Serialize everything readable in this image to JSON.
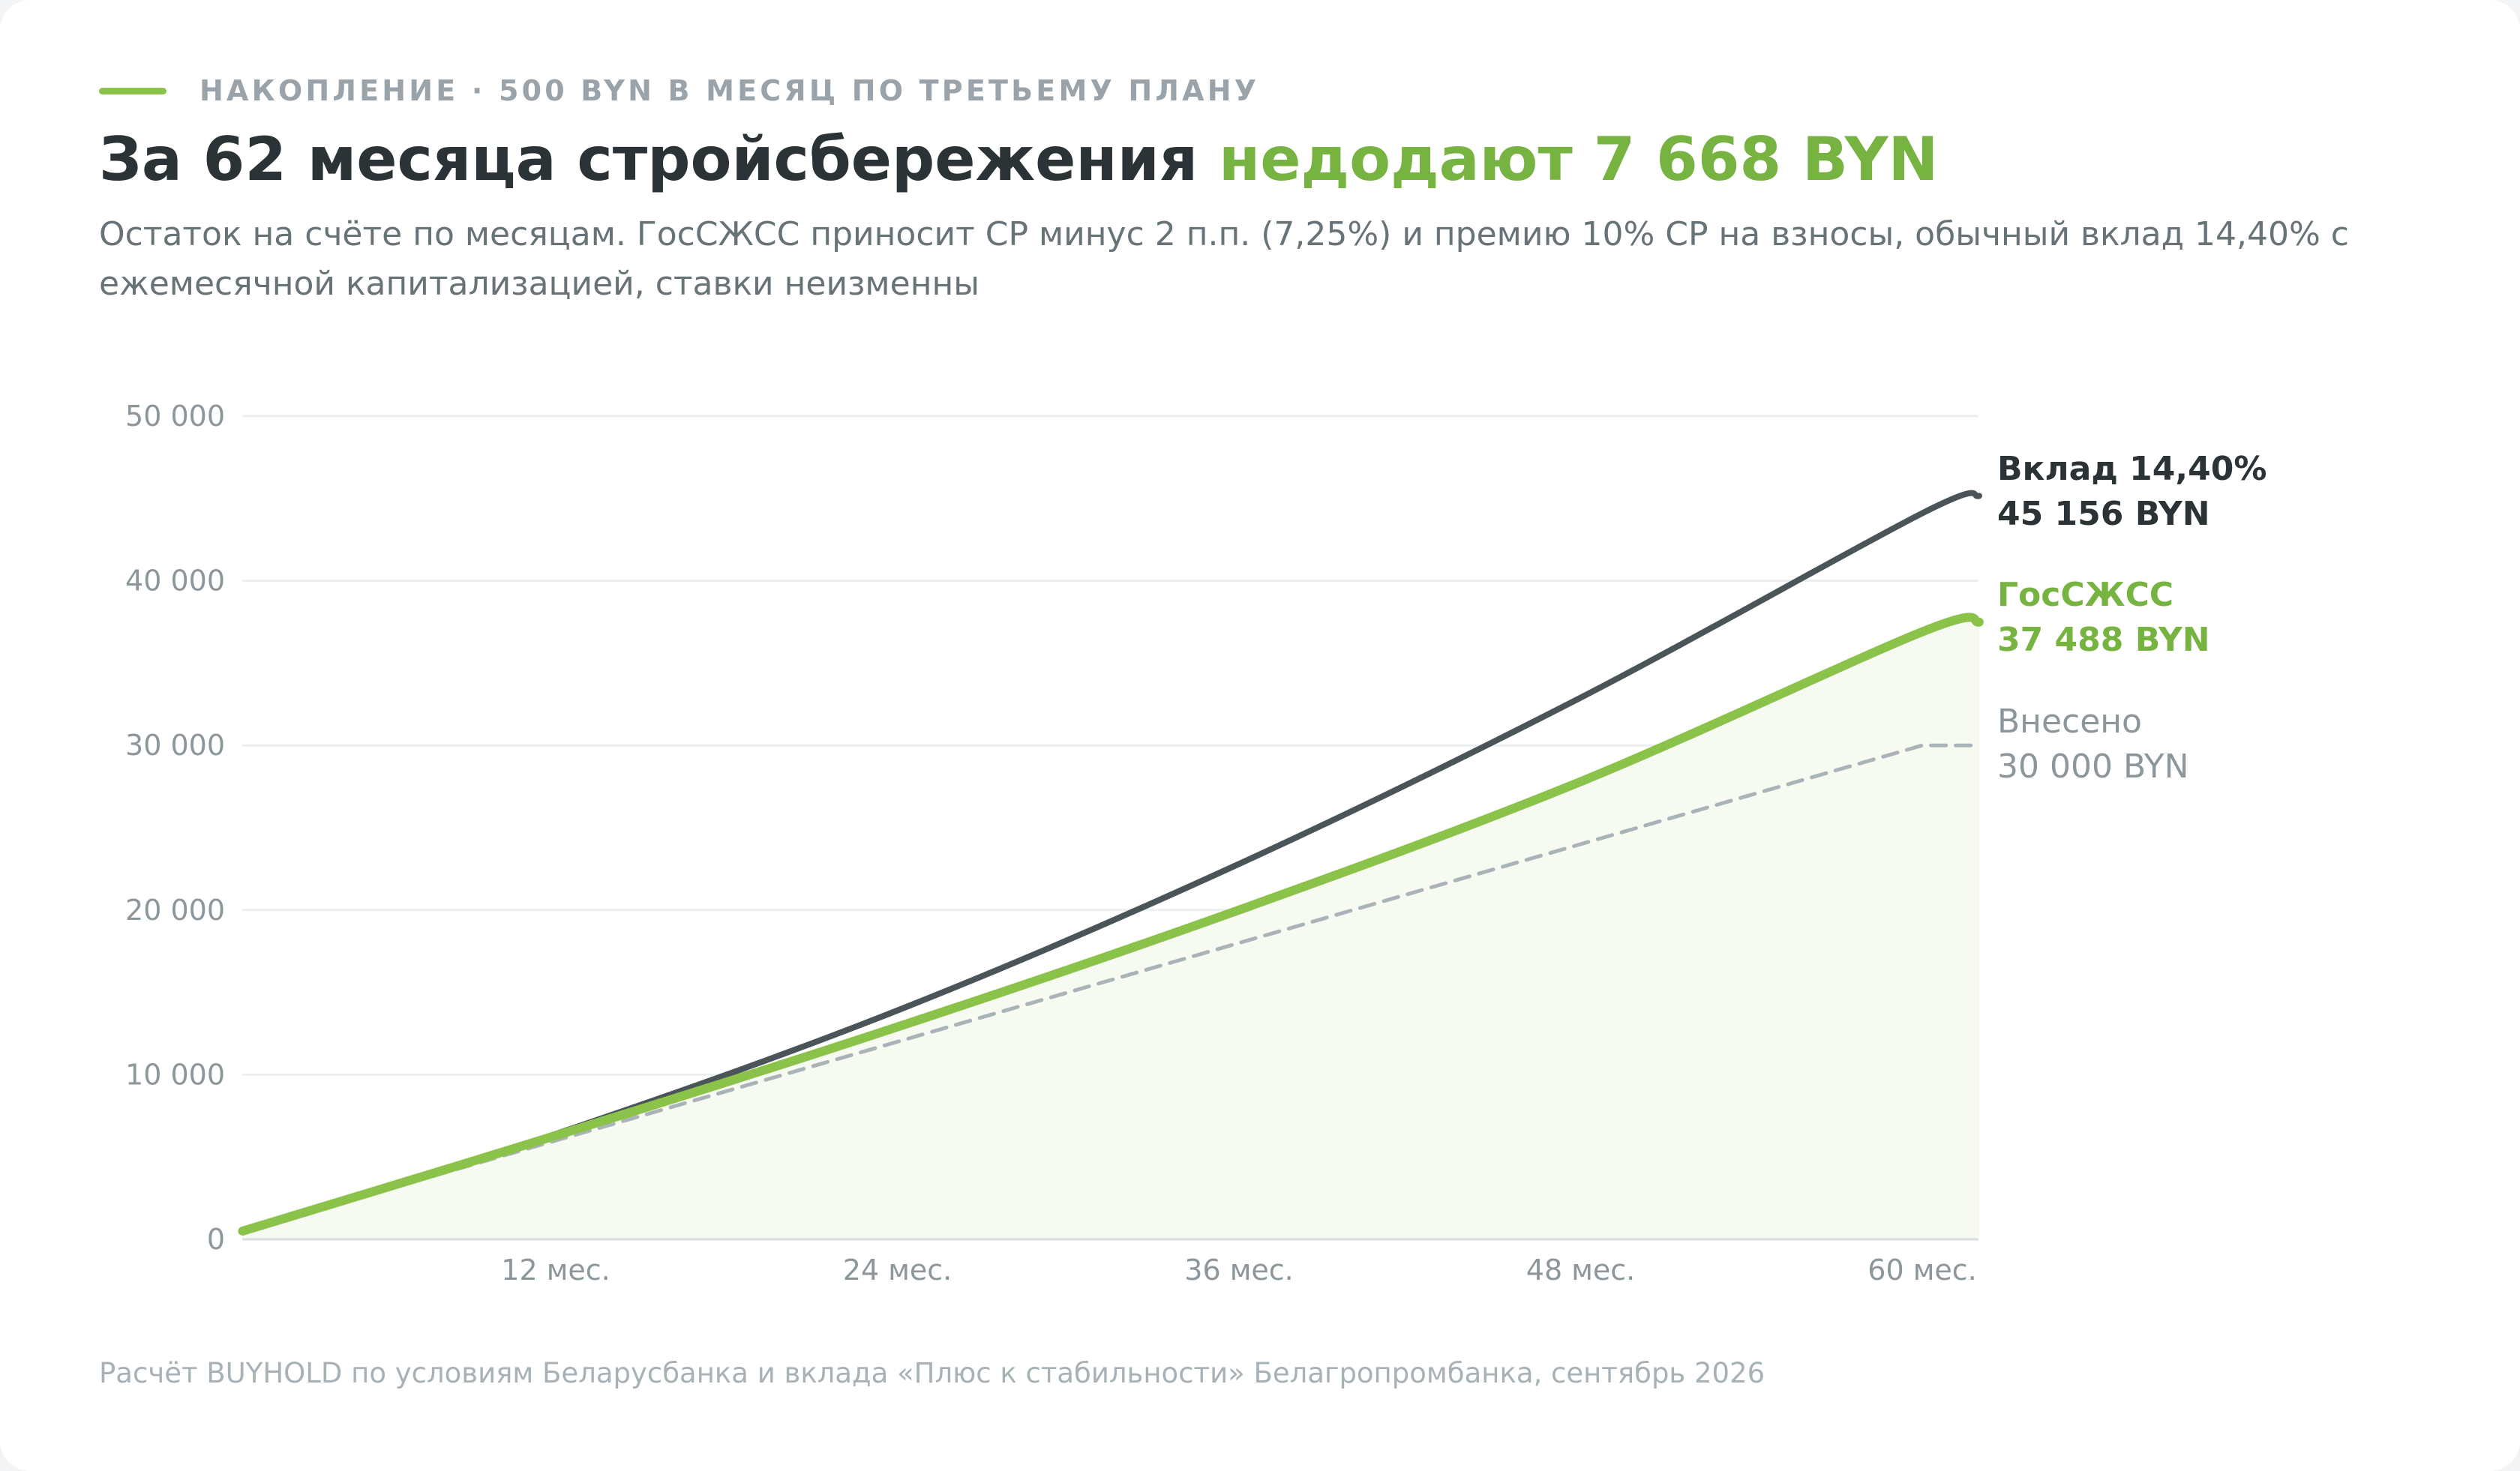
{
  "header": {
    "kicker": "НАКОПЛЕНИЕ · 500 BYN В МЕСЯЦ ПО ТРЕТЬЕМУ ПЛАНУ",
    "title_main": "За 62 месяца стройсбережения ",
    "title_accent": "недодают 7 668 BYN",
    "subtitle": "Остаток на счёте по месяцам. ГосСЖСС приносит СР минус 2 п.п. (7,25%) и премию 10% СР на взносы, обычный вклад 14,40% с ежемесячной капитализацией, ставки неизменны"
  },
  "footer": {
    "source": "Расчёт BUYHOLD по условиям Беларусбанка и вклада «Плюс к стабильности» Белагропромбанка, сентябрь 2026"
  },
  "colors": {
    "accent": "#8bc34a",
    "accent_text": "#76b340",
    "deposit": "#4b5459",
    "contributed": "#aab4b8",
    "grid": "#eceff1",
    "tick_text": "#8c969b",
    "area_fill": "#f7faf1"
  },
  "chart_data": {
    "type": "line",
    "x_unit": "месяц",
    "xlim": [
      1,
      62
    ],
    "ylim": [
      0,
      50000
    ],
    "x_ticks": [
      12,
      24,
      36,
      48,
      60
    ],
    "x_tick_labels": [
      "12 мес.",
      "24 мес.",
      "36 мес.",
      "48 мес.",
      "60 мес."
    ],
    "y_ticks": [
      0,
      10000,
      20000,
      30000,
      40000,
      50000
    ],
    "y_tick_labels": [
      "0",
      "10 000",
      "20 000",
      "30 000",
      "40 000",
      "50 000"
    ],
    "grid": true,
    "legend": "end-of-line labels, right",
    "series": [
      {
        "key": "deposit",
        "name": "Вклад 14,40%",
        "end_label": "45 156 BYN",
        "style": "solid",
        "color": "#4b5459",
        "points": [
          [
            1,
            500
          ],
          [
            12,
            6400
          ],
          [
            24,
            13900
          ],
          [
            36,
            22800
          ],
          [
            48,
            32900
          ],
          [
            60,
            44100
          ],
          [
            62,
            45156
          ]
        ]
      },
      {
        "key": "gosszhss",
        "name": "ГосСЖСС",
        "end_label": "37 488 BYN",
        "style": "solid-thick",
        "color": "#8bc34a",
        "points": [
          [
            1,
            500
          ],
          [
            12,
            6300
          ],
          [
            24,
            12900
          ],
          [
            36,
            20000
          ],
          [
            48,
            27800
          ],
          [
            60,
            36900
          ],
          [
            62,
            37488
          ]
        ]
      },
      {
        "key": "contributed",
        "name": "Внесено",
        "end_label": "30 000 BYN",
        "style": "dashed",
        "color": "#aab4b8",
        "points": [
          [
            1,
            500
          ],
          [
            60,
            30000
          ],
          [
            62,
            30000
          ]
        ]
      }
    ]
  }
}
